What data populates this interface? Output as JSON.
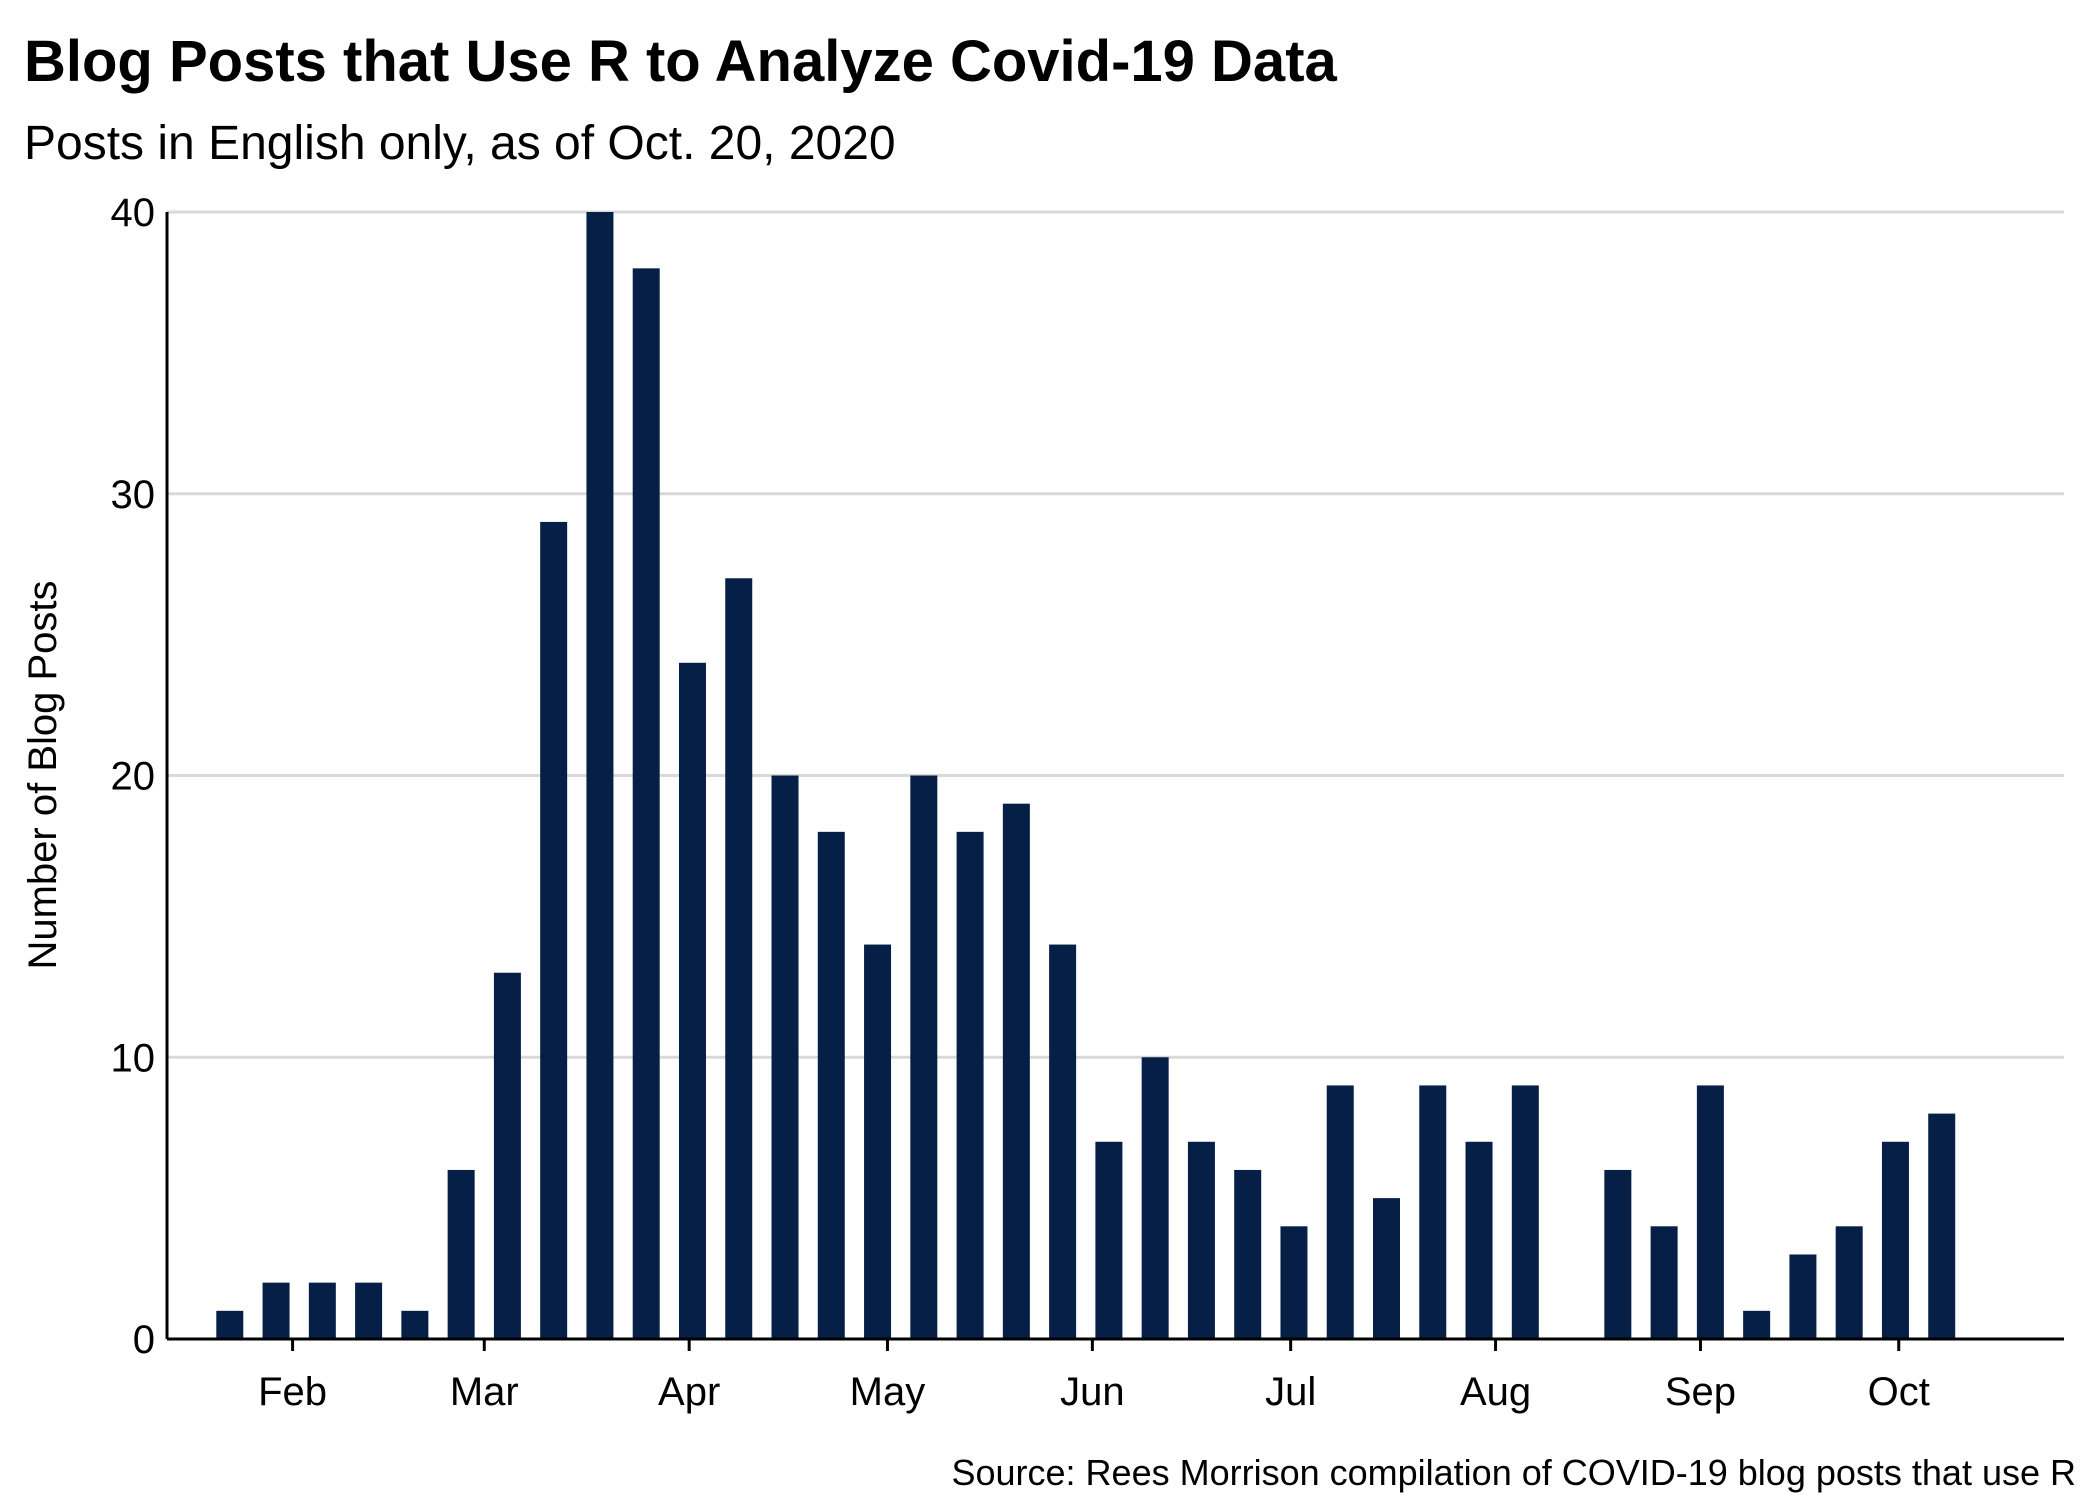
{
  "chart_data": {
    "type": "bar",
    "title": "Blog Posts that Use R to Analyze Covid-19 Data",
    "subtitle": "Posts in English only, as of Oct. 20, 2020",
    "caption": "Source: Rees Morrison compilation of COVID-19 blog posts that use R",
    "ylabel": "Number of Blog Posts",
    "xlabel": "",
    "ylim": [
      0,
      40
    ],
    "yticks": [
      0,
      10,
      20,
      30,
      40
    ],
    "xlim": [
      "2020-01-13",
      "2020-10-26"
    ],
    "xticks": [
      {
        "date": "2020-02-01",
        "label": "Feb"
      },
      {
        "date": "2020-03-01",
        "label": "Mar"
      },
      {
        "date": "2020-04-01",
        "label": "Apr"
      },
      {
        "date": "2020-05-01",
        "label": "May"
      },
      {
        "date": "2020-06-01",
        "label": "Jun"
      },
      {
        "date": "2020-07-01",
        "label": "Jul"
      },
      {
        "date": "2020-08-01",
        "label": "Aug"
      },
      {
        "date": "2020-09-01",
        "label": "Sep"
      },
      {
        "date": "2020-10-01",
        "label": "Oct"
      }
    ],
    "grid": "horizontal",
    "colors": {
      "bar": "#061f47",
      "grid": "#d9d9d9",
      "axis": "#000000"
    },
    "x": [
      "2020-01-19",
      "2020-01-26",
      "2020-02-02",
      "2020-02-09",
      "2020-02-16",
      "2020-02-23",
      "2020-03-01",
      "2020-03-08",
      "2020-03-15",
      "2020-03-22",
      "2020-03-29",
      "2020-04-05",
      "2020-04-12",
      "2020-04-19",
      "2020-04-26",
      "2020-05-03",
      "2020-05-10",
      "2020-05-17",
      "2020-05-24",
      "2020-05-31",
      "2020-06-07",
      "2020-06-14",
      "2020-06-21",
      "2020-06-28",
      "2020-07-05",
      "2020-07-12",
      "2020-07-19",
      "2020-07-26",
      "2020-08-02",
      "2020-08-09",
      "2020-08-16",
      "2020-08-23",
      "2020-08-30",
      "2020-09-06",
      "2020-09-13",
      "2020-09-20",
      "2020-09-27",
      "2020-10-04",
      "2020-10-11"
    ],
    "values": [
      1,
      2,
      2,
      2,
      1,
      6,
      13,
      29,
      40,
      38,
      24,
      27,
      20,
      18,
      14,
      20,
      18,
      19,
      14,
      7,
      10,
      7,
      6,
      4,
      9,
      5,
      9,
      7,
      9,
      0,
      6,
      4,
      9,
      1,
      3,
      4,
      7,
      8,
      0
    ]
  }
}
